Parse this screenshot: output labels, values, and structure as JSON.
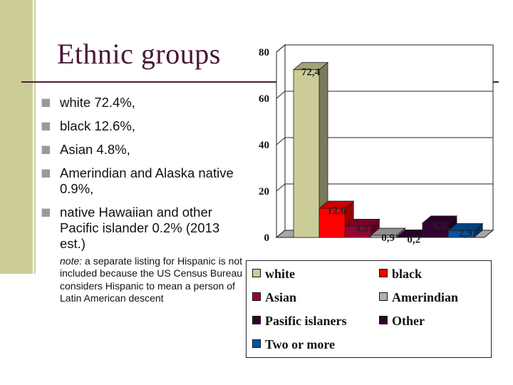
{
  "title": "Ethnic groups",
  "bullets": [
    "white 72.4%,",
    "black 12.6%,",
    "Asian 4.8%,",
    "Amerindian and Alaska native 0.9%,",
    "native Hawaiian and other Pacific islander 0.2% (2013 est.)"
  ],
  "note": {
    "label": "note:",
    "text": " a separate listing for Hispanic is not included because the US Census Bureau considers Hispanic to mean a person of Latin American descent"
  },
  "chart_data": {
    "type": "bar",
    "title": "",
    "xlabel": "",
    "ylabel": "",
    "ylim": [
      0,
      80
    ],
    "yticks": [
      "0",
      "20",
      "40",
      "60",
      "80"
    ],
    "grid": true,
    "legend_position": "bottom",
    "series": [
      {
        "name": "white",
        "value": 72.4,
        "label": "72,4",
        "color": "#cccc99"
      },
      {
        "name": "black",
        "value": 12.6,
        "label": "12,6",
        "color": "#ff0000"
      },
      {
        "name": "Asian",
        "value": 4.8,
        "label": "4,8",
        "color": "#990033"
      },
      {
        "name": "Amerindian",
        "value": 0.9,
        "label": "0,9",
        "color": "#b2b2b2"
      },
      {
        "name": "Pasific islaners",
        "value": 0.2,
        "label": "0,2",
        "color": "#330033"
      },
      {
        "name": "Other",
        "value": 6.2,
        "label": "6,2",
        "color": "#330033"
      },
      {
        "name": "Two or more",
        "value": 2.9,
        "label": "2,9",
        "color": "#0055a5"
      }
    ]
  }
}
